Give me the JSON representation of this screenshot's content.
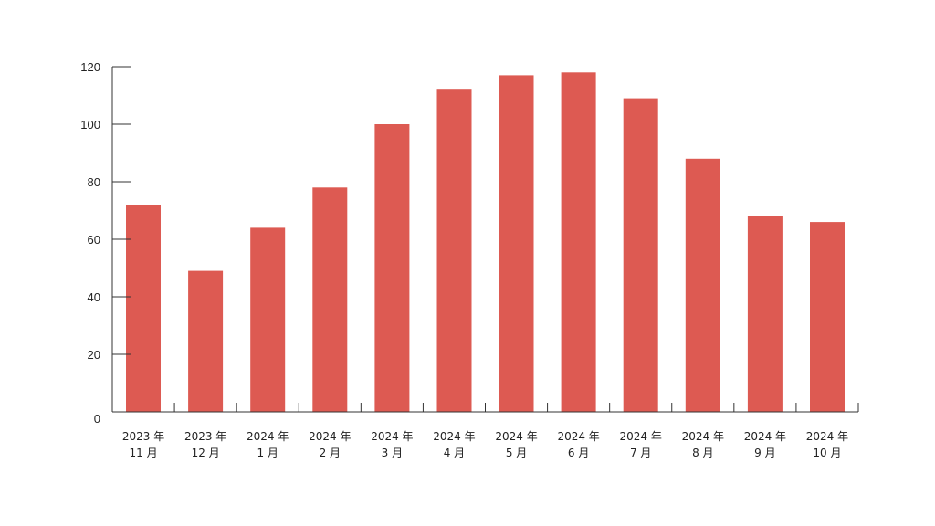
{
  "chart_data": {
    "type": "bar",
    "categories": [
      [
        "2023 年",
        "11 月"
      ],
      [
        "2023 年",
        "12 月"
      ],
      [
        "2024 年",
        "1 月"
      ],
      [
        "2024 年",
        "2 月"
      ],
      [
        "2024 年",
        "3 月"
      ],
      [
        "2024 年",
        "4 月"
      ],
      [
        "2024 年",
        "5 月"
      ],
      [
        "2024 年",
        "6 月"
      ],
      [
        "2024 年",
        "7 月"
      ],
      [
        "2024 年",
        "8 月"
      ],
      [
        "2024 年",
        "9 月"
      ],
      [
        "2024 年",
        "10 月"
      ]
    ],
    "values": [
      72,
      49,
      64,
      78,
      100,
      112,
      117,
      118,
      109,
      88,
      68,
      66
    ],
    "yticks": [
      0,
      20,
      40,
      60,
      80,
      100,
      120
    ],
    "ylim": [
      0,
      120
    ],
    "grid": false,
    "legend": "none",
    "bar_color": "#dd5a52",
    "axis_color": "#333333"
  }
}
